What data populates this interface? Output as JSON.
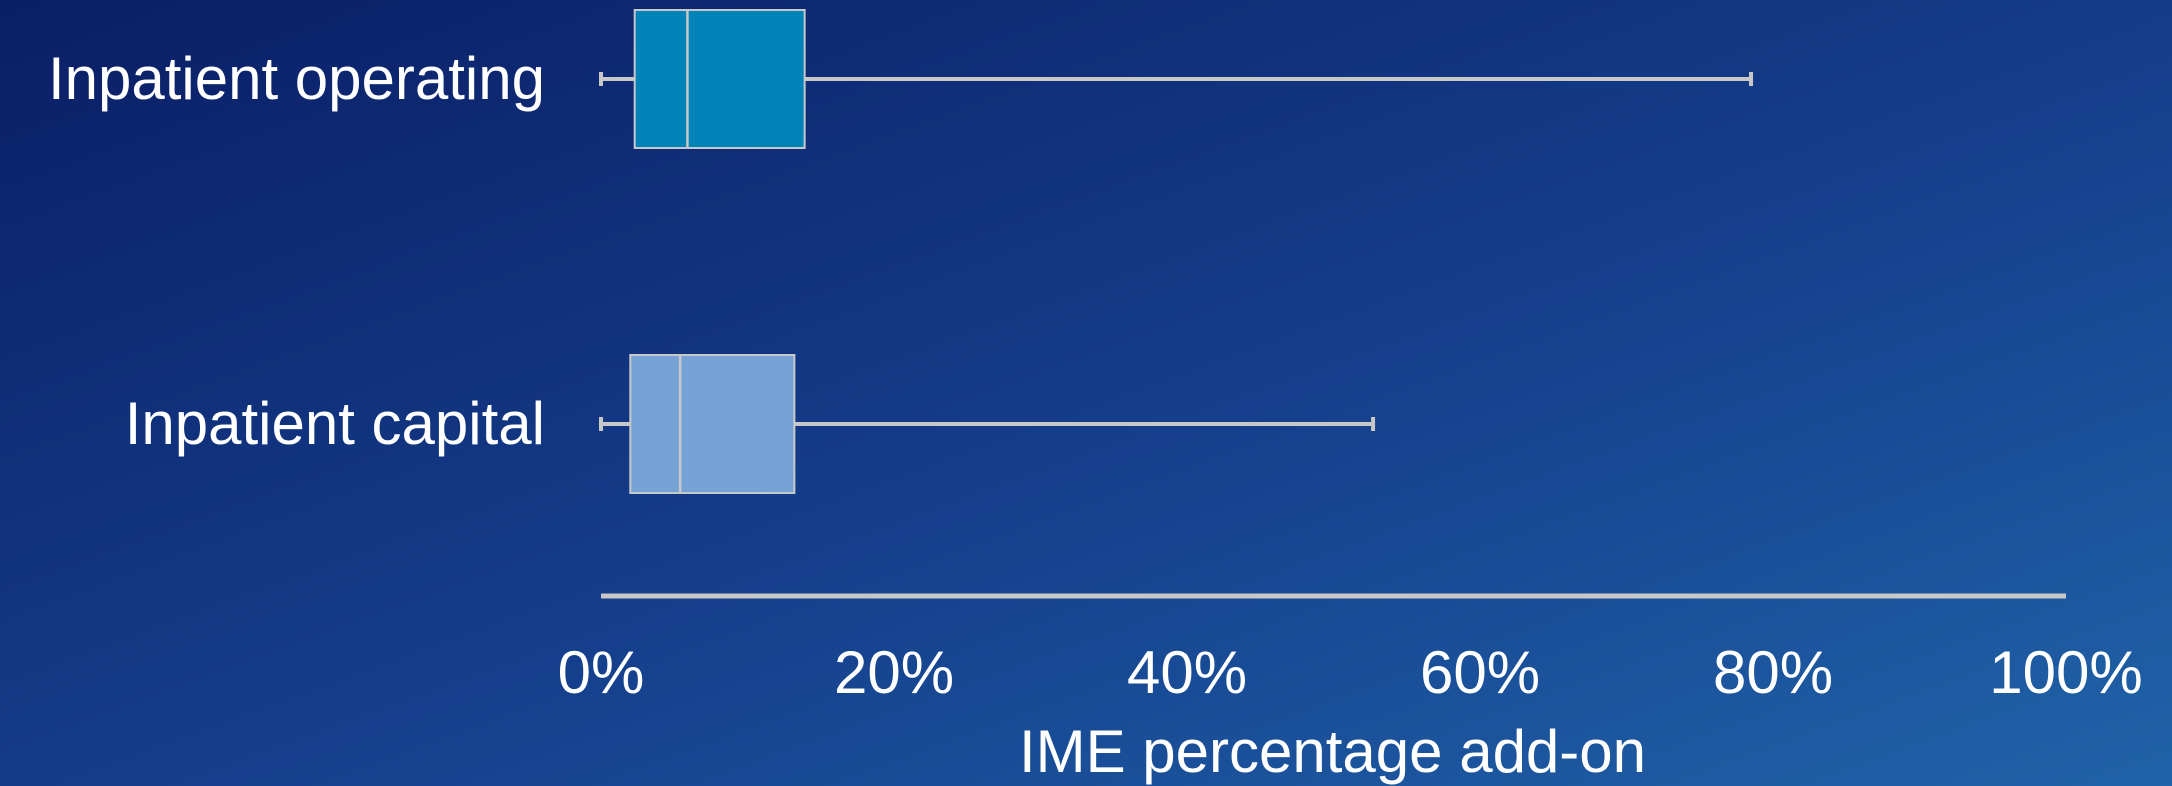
{
  "chart_data": {
    "type": "box",
    "xlabel": "IME percentage add-on",
    "xlim": [
      0,
      100
    ],
    "xticks": [
      "0%",
      "20%",
      "40%",
      "60%",
      "80%",
      "100%"
    ],
    "categories": [
      "Inpatient operating",
      "Inpatient capital"
    ],
    "boxes": [
      {
        "label": "Inpatient operating",
        "min": 0,
        "q1": 2.3,
        "median": 5.9,
        "q3": 13.9,
        "max": 78.5,
        "color": "#0083b8"
      },
      {
        "label": "Inpatient capital",
        "min": 0,
        "q1": 2.0,
        "median": 5.4,
        "q3": 13.2,
        "max": 52.7,
        "color": "#75a3d6"
      }
    ],
    "colors": {
      "axis": "#c8c8c8",
      "text": "#ffffff",
      "median": "#c8c8c8"
    }
  }
}
